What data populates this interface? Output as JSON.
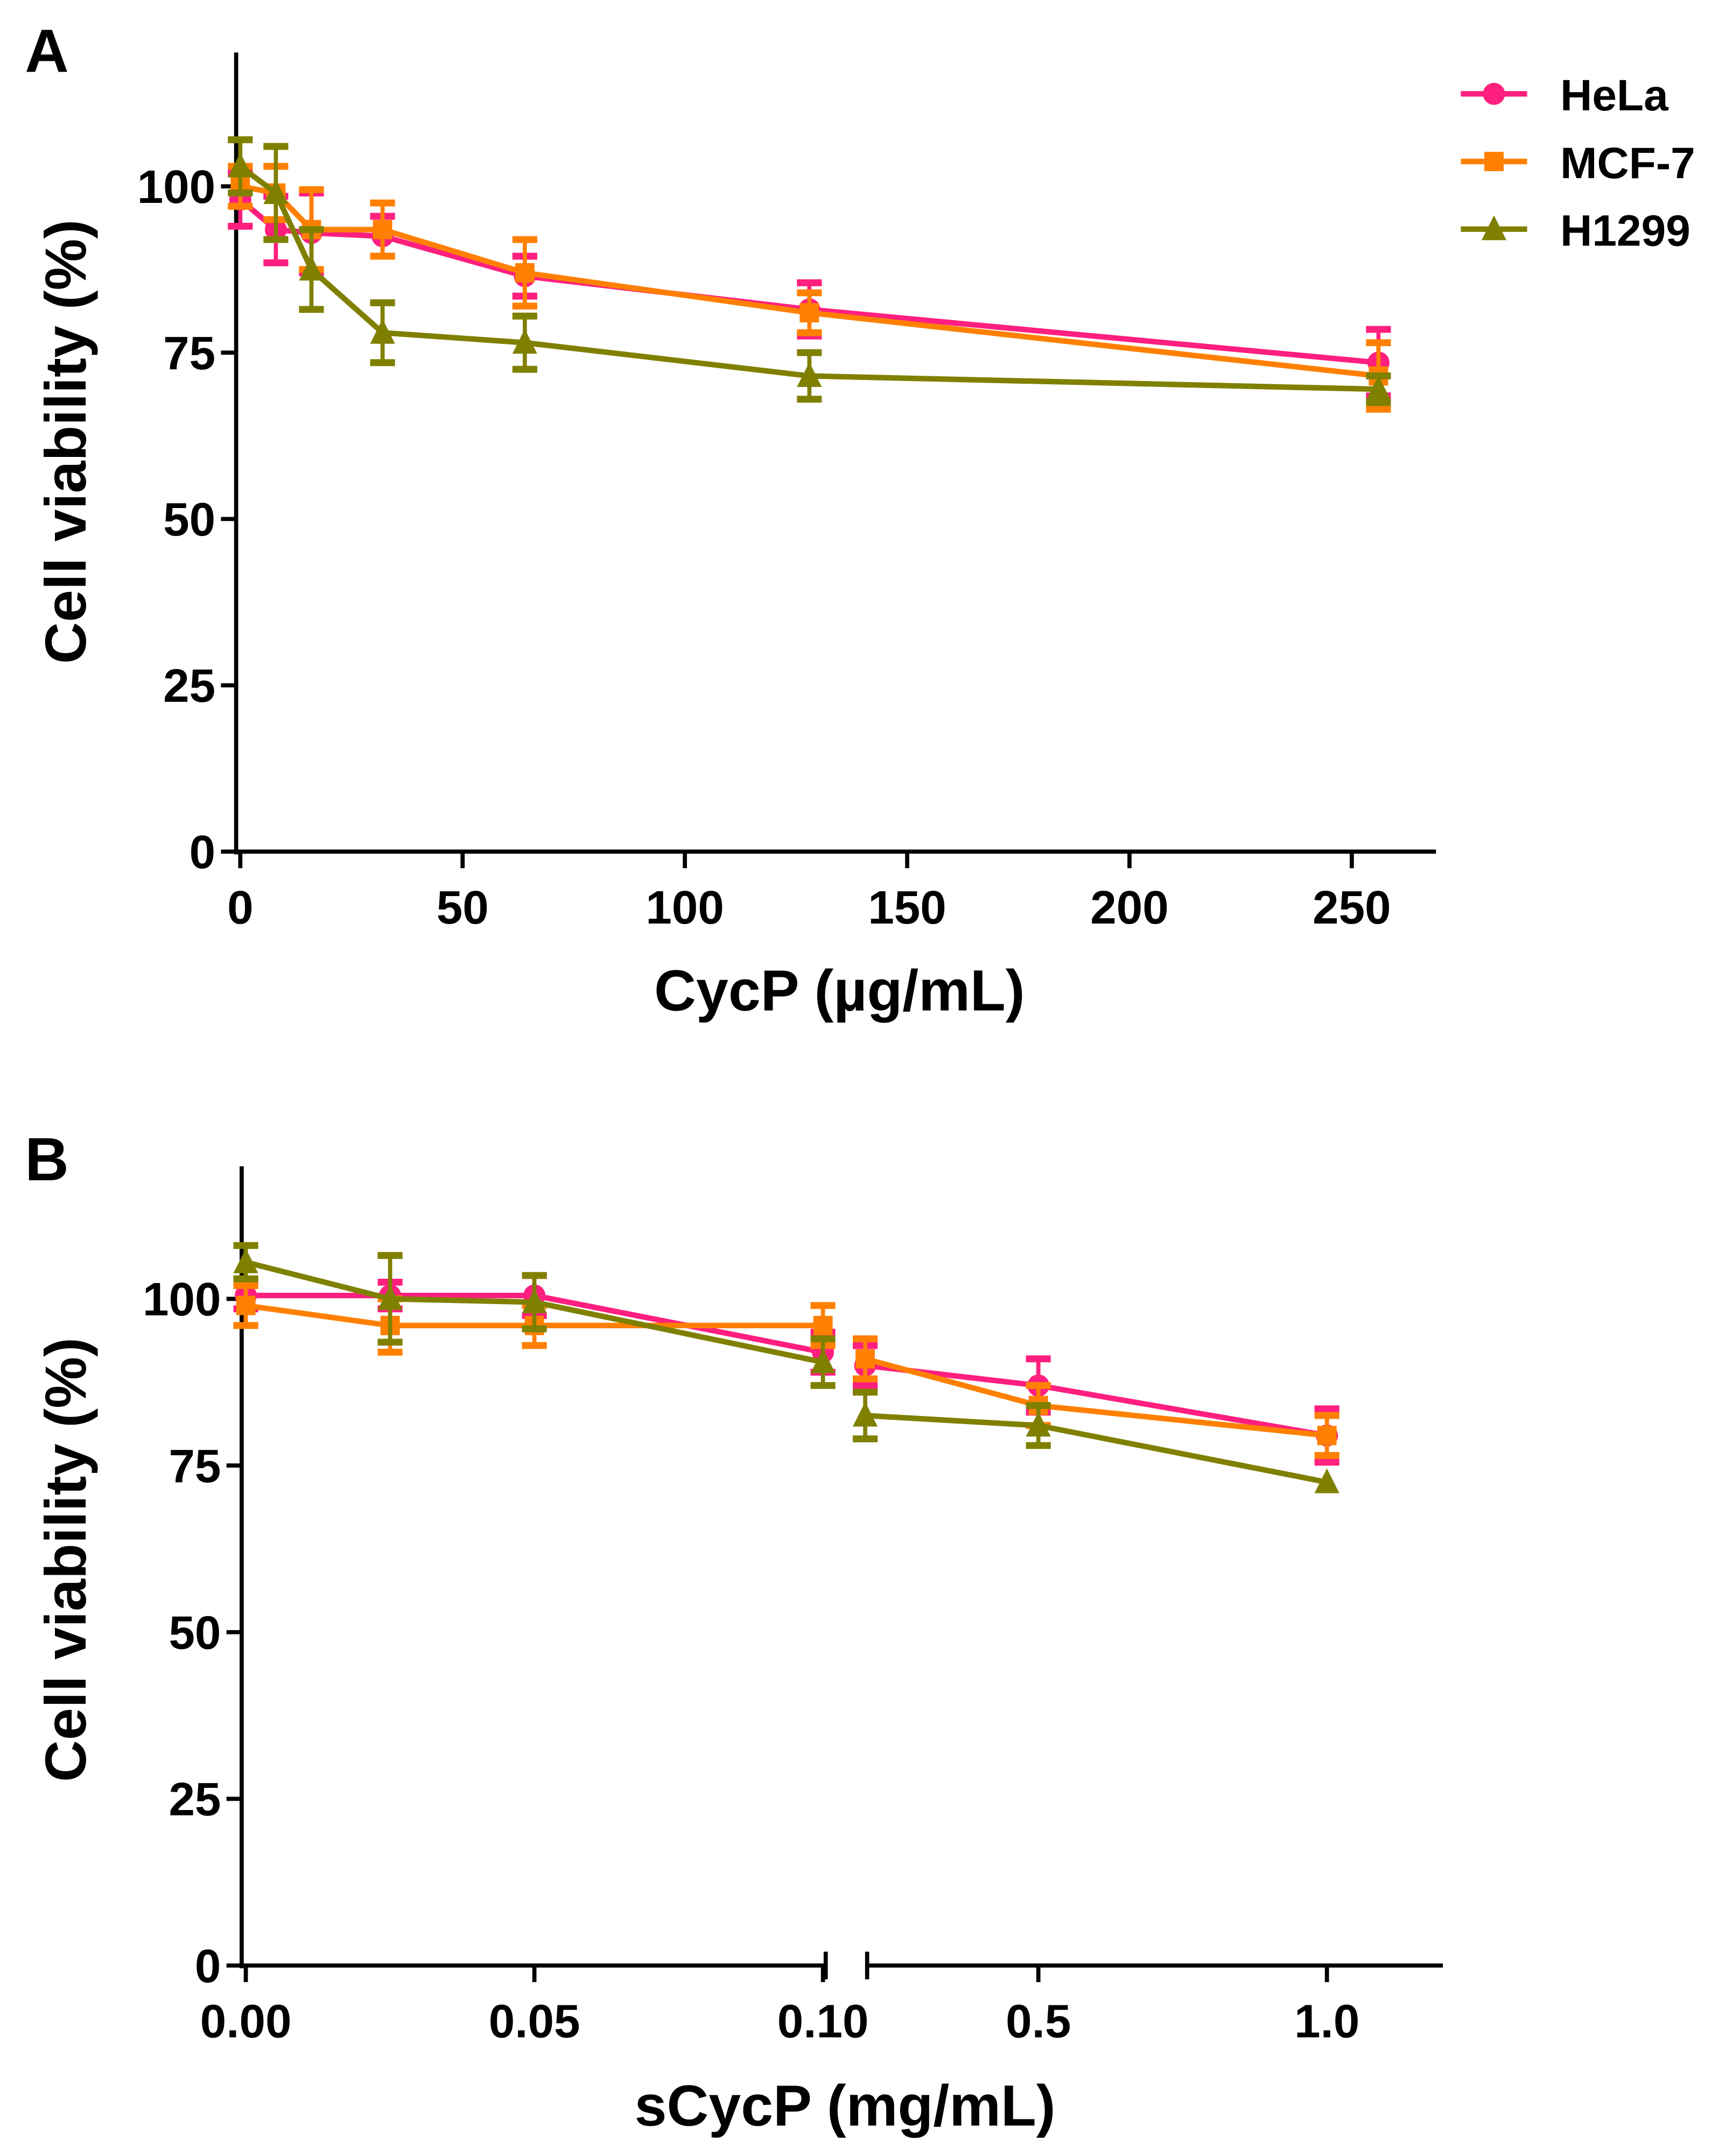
{
  "chart_data": [
    {
      "panel_label": "A",
      "type": "line",
      "xlabel": "CycP (µg/mL)",
      "ylabel": "Cell viability (%)",
      "xlim": [
        0,
        270
      ],
      "ylim": [
        0,
        120
      ],
      "x_ticks": [
        0,
        50,
        100,
        150,
        200,
        250
      ],
      "x_tick_labels": [
        "0",
        "50",
        "100",
        "150",
        "200",
        "250"
      ],
      "y_ticks": [
        0,
        25,
        50,
        75,
        100
      ],
      "y_tick_labels": [
        "0",
        "25",
        "50",
        "75",
        "100"
      ],
      "x": [
        0,
        8,
        16,
        32,
        64,
        128,
        256
      ],
      "legend": {
        "placement": "top-right",
        "entries": [
          "HeLa",
          "MCF-7",
          "H1299"
        ]
      },
      "series": [
        {
          "name": "HeLa",
          "color": "#ff1f7f",
          "marker": "circle",
          "values": [
            98,
            93.5,
            93,
            92.5,
            86.5,
            81.5,
            73.5
          ],
          "errors": [
            4,
            5,
            6,
            3,
            3,
            4,
            5
          ]
        },
        {
          "name": "MCF-7",
          "color": "#ff8000",
          "marker": "square",
          "values": [
            100,
            99,
            93.5,
            93.5,
            87,
            81,
            71.5
          ],
          "errors": [
            3,
            4,
            6,
            4,
            5,
            3,
            5
          ]
        },
        {
          "name": "H1299",
          "color": "#808000",
          "marker": "triangle",
          "values": [
            103,
            99,
            87.5,
            78,
            76.5,
            71.5,
            69.5
          ],
          "errors": [
            4,
            7,
            6,
            4.5,
            4,
            3.5,
            2
          ]
        }
      ]
    },
    {
      "panel_label": "B",
      "type": "line",
      "xlabel": "sCycP (mg/mL)",
      "ylabel": "Cell viability (%)",
      "x_axis_segments": [
        [
          0,
          0.1
        ],
        [
          0.2,
          1.0
        ]
      ],
      "ylim": [
        0,
        120
      ],
      "x_ticks": [
        0,
        0.05,
        0.1,
        0.5,
        1.0
      ],
      "x_tick_labels": [
        "0.00",
        "0.05",
        "0.10",
        "0.5",
        "1.0"
      ],
      "y_ticks": [
        0,
        25,
        50,
        75,
        100
      ],
      "y_tick_labels": [
        "0",
        "25",
        "50",
        "75",
        "100"
      ],
      "x": [
        0,
        0.025,
        0.05,
        0.1,
        0.2,
        0.5,
        1.0
      ],
      "series": [
        {
          "name": "HeLa",
          "color": "#ff1f7f",
          "marker": "circle",
          "values": [
            100.5,
            100.5,
            100.5,
            92,
            90,
            87,
            79.5
          ],
          "errors": [
            2,
            2,
            3,
            3,
            3,
            4,
            4
          ]
        },
        {
          "name": "MCF-7",
          "color": "#ff8000",
          "marker": "square",
          "values": [
            99,
            96,
            96,
            96,
            91,
            84,
            79.5
          ],
          "errors": [
            3,
            4,
            3,
            3,
            3,
            3,
            3
          ]
        },
        {
          "name": "H1299",
          "color": "#808000",
          "marker": "triangle",
          "values": [
            105.5,
            100,
            99.5,
            90.5,
            82.5,
            81,
            72.5
          ],
          "errors": [
            2.5,
            6.5,
            4,
            3.5,
            3.5,
            3,
            0
          ]
        }
      ]
    }
  ]
}
